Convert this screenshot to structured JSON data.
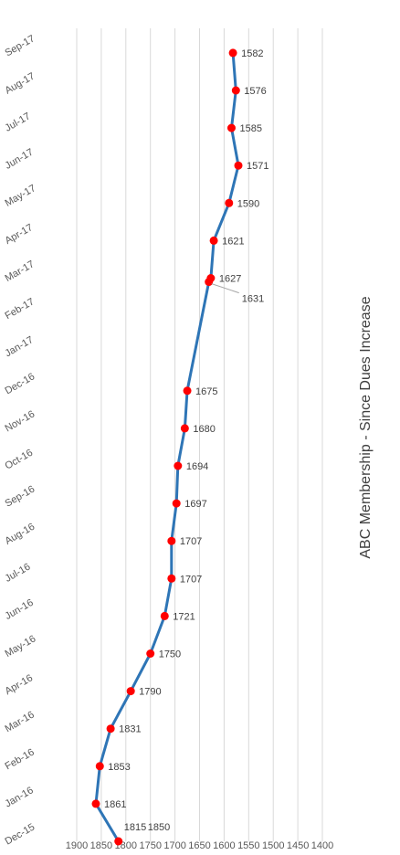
{
  "chart_data": {
    "type": "line",
    "title": "ABC Membership - Since Dues Increase",
    "xlabel": "",
    "ylabel": "",
    "ylim": [
      1400,
      1900
    ],
    "y_ticks": [
      "1900",
      "1850",
      "1800",
      "1750",
      "1700",
      "1650",
      "1600",
      "1550",
      "1500",
      "1450",
      "1400"
    ],
    "categories": [
      "Dec-15",
      "Jan-16",
      "Feb-16",
      "Mar-16",
      "Apr-16",
      "May-16",
      "Jun-16",
      "Jul-16",
      "Aug-16",
      "Sep-16",
      "Oct-16",
      "Nov-16",
      "Dec-16",
      "Jan-17",
      "Feb-17",
      "Mar-17",
      "Apr-17",
      "May-17",
      "Jun-17",
      "Jul-17",
      "Aug-17",
      "Sep-17"
    ],
    "points": [
      {
        "x": 0,
        "y": 1815,
        "label": "1815"
      },
      {
        "x": 1,
        "y": 1861,
        "label": "1861"
      },
      {
        "x": 2,
        "y": 1853,
        "label": "1853"
      },
      {
        "x": 3,
        "y": 1831,
        "label": "1831"
      },
      {
        "x": 4,
        "y": 1790,
        "label": "1790"
      },
      {
        "x": 5,
        "y": 1750,
        "label": "1750"
      },
      {
        "x": 6,
        "y": 1721,
        "label": "1721"
      },
      {
        "x": 7,
        "y": 1707,
        "label": "1707"
      },
      {
        "x": 8,
        "y": 1707,
        "label": "1707"
      },
      {
        "x": 9,
        "y": 1697,
        "label": "1697"
      },
      {
        "x": 10,
        "y": 1694,
        "label": "1694"
      },
      {
        "x": 11,
        "y": 1680,
        "label": "1680"
      },
      {
        "x": 12,
        "y": 1675,
        "label": "1675"
      },
      {
        "x": 14.9,
        "y": 1631,
        "label": "1631"
      },
      {
        "x": 15,
        "y": 1627,
        "label": "1627"
      },
      {
        "x": 16,
        "y": 1621,
        "label": "1621"
      },
      {
        "x": 17,
        "y": 1590,
        "label": "1590"
      },
      {
        "x": 18,
        "y": 1571,
        "label": "1571"
      },
      {
        "x": 19,
        "y": 1585,
        "label": "1585"
      },
      {
        "x": 20,
        "y": 1576,
        "label": "1576"
      },
      {
        "x": 21,
        "y": 1582,
        "label": "1582"
      }
    ],
    "extra_labels": [
      "1850"
    ],
    "grid": true,
    "legend": "none",
    "line_color": "#2e75b6",
    "marker_color": "#ff0000"
  }
}
